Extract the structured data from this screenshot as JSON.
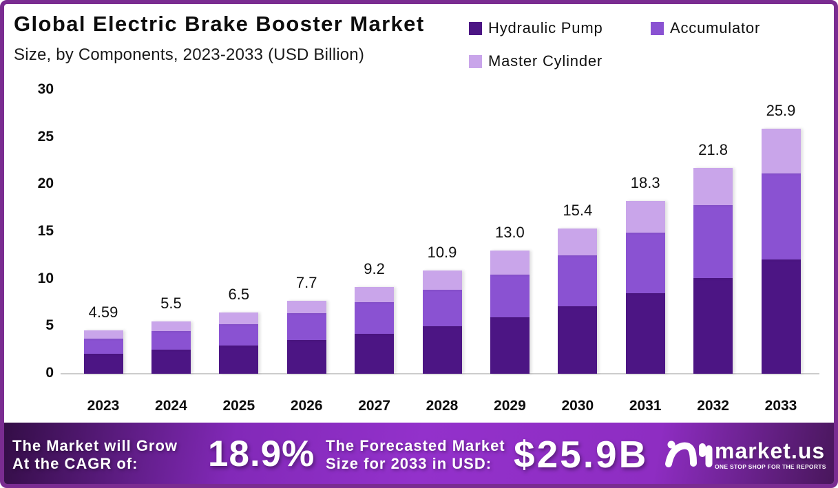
{
  "title": "Global Electric Brake Booster Market",
  "subtitle": "Size, by Components, 2023-2033 (USD Billion)",
  "chart_data": {
    "type": "bar",
    "stacked": true,
    "title": "Global Electric Brake Booster Market Size, by Components, 2023-2033 (USD Billion)",
    "categories": [
      "2023",
      "2024",
      "2025",
      "2026",
      "2027",
      "2028",
      "2029",
      "2030",
      "2031",
      "2032",
      "2033"
    ],
    "series": [
      {
        "name": "Hydraulic Pump",
        "color": "#4c1584",
        "values": [
          2.1,
          2.55,
          3.0,
          3.6,
          4.25,
          5.0,
          6.0,
          7.15,
          8.5,
          10.15,
          12.1
        ]
      },
      {
        "name": "Accumulator",
        "color": "#8a52d2",
        "values": [
          1.65,
          1.95,
          2.25,
          2.8,
          3.3,
          3.9,
          4.5,
          5.4,
          6.45,
          7.7,
          9.1
        ]
      },
      {
        "name": "Master Cylinder",
        "color": "#c9a5ea",
        "values": [
          0.84,
          1.0,
          1.25,
          1.3,
          1.65,
          2.0,
          2.5,
          2.85,
          3.35,
          3.95,
          4.7
        ]
      }
    ],
    "totals": [
      "4.59",
      "5.5",
      "6.5",
      "7.7",
      "9.2",
      "10.9",
      "13.0",
      "15.4",
      "18.3",
      "21.8",
      "25.9"
    ],
    "ylim": [
      0,
      30
    ],
    "yticks": [
      0,
      5,
      10,
      15,
      20,
      25,
      30
    ],
    "grid": false,
    "legend_position": "top-right"
  },
  "footer": {
    "cagr_label_line1": "The Market will Grow",
    "cagr_label_line2": "At the CAGR of:",
    "cagr_value": "18.9%",
    "forecast_label_line1": "The Forecasted Market",
    "forecast_label_line2": "Size for 2033 in USD:",
    "forecast_value": "$25.9B",
    "brand": "market.us",
    "brand_tagline": "ONE STOP SHOP FOR THE REPORTS"
  },
  "colors": {
    "border": "#7a2c91",
    "banner_gradient": [
      "#320d44",
      "#9331cb",
      "#471659"
    ],
    "text": "#0d0d0d"
  }
}
